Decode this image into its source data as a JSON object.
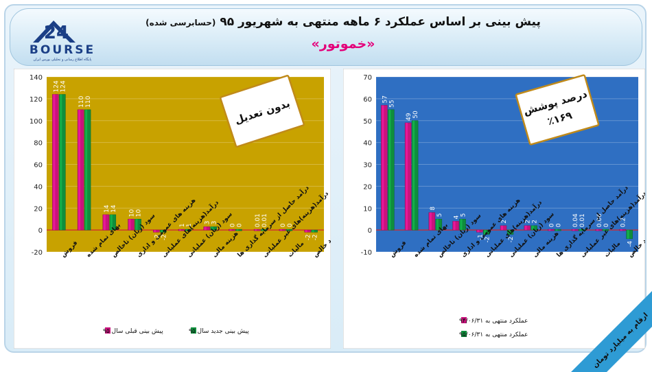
{
  "header": {
    "title": "پیش بینی بر اساس عملکرد ۶ ماهه منتهی به شهریور ۹۵",
    "title_note": "(حسابرسی شده)",
    "company": "«خموتور»"
  },
  "logo": {
    "text": "BOURSE",
    "caption": "پایگاه اطلاع رسانی و تحلیلی بورس ایران"
  },
  "footer_note": "ارقام به میلیارد تومان",
  "colors": {
    "magenta": "#c8137c",
    "green": "#0f8e3c",
    "left_bg": "#c8a200",
    "right_bg": "#2f6fc2",
    "note_border": "#c08a1a"
  },
  "categories": [
    "فروش",
    "بهای تمام شده",
    "سود (زیان) ناخالص",
    "هزینه های عمومی و اداری",
    "درآمد(هزینه)های عملیاتی",
    "سود (زیان) عملیاتی",
    "هزینه مالی",
    "درآمد حاصل از سرمایه گذاری ها",
    "درآمد(هزینه)های غیر عملیاتی",
    "مالیات",
    "سود خالص"
  ],
  "chart_data": [
    {
      "type": "bar",
      "note": "بدون تعدیل",
      "ylim": [
        -20,
        140
      ],
      "yticks": [
        -20,
        0,
        20,
        40,
        60,
        80,
        100,
        120,
        140
      ],
      "series": [
        {
          "name": "پیش بینی قبلی سال ۹۵",
          "values": [
            124,
            110,
            14,
            10,
            -2,
            1,
            3,
            0,
            0.01,
            0,
            -2
          ],
          "labels": [
            "124",
            "110",
            "14",
            "10",
            "-2",
            "1",
            "3",
            "0",
            "0.01",
            "0",
            "-2"
          ]
        },
        {
          "name": "پیش بینی جدید سال ۹۵",
          "values": [
            124,
            110,
            14,
            10,
            -2,
            1,
            3,
            0,
            0.01,
            0,
            -2
          ],
          "labels": [
            "124",
            "110",
            "14",
            "10",
            "-2",
            "1",
            "3",
            "0",
            "0.01",
            "0",
            "-2"
          ]
        }
      ]
    },
    {
      "type": "bar",
      "note": "درصد پوشش ٪۱۶۹",
      "note_line1": "درصد پوشش",
      "note_line2": "٪۱۶۹",
      "ylim": [
        -10,
        70
      ],
      "yticks": [
        -10,
        0,
        10,
        20,
        30,
        40,
        50,
        60,
        70
      ],
      "series": [
        {
          "name": "عملکرد منتهی به ۹۴/۰۶/۳۱",
          "values": [
            57,
            49,
            8,
            4,
            -1,
            2,
            2,
            0,
            0.04,
            0.06,
            0.2
          ],
          "labels": [
            "57",
            "49",
            "8",
            "4",
            "-1",
            "2",
            "2",
            "0",
            "0.04",
            "0.06",
            "0.2"
          ]
        },
        {
          "name": "عملکرد منتهی به ۹۵/۰۶/۳۱",
          "values": [
            55,
            50,
            5,
            5,
            -2,
            -2,
            2,
            0,
            0.01,
            0,
            -4
          ],
          "labels": [
            "55",
            "50",
            "5",
            "5",
            "-2",
            "-2",
            "2",
            "0",
            "0.01",
            "0",
            "-4"
          ]
        }
      ]
    }
  ]
}
